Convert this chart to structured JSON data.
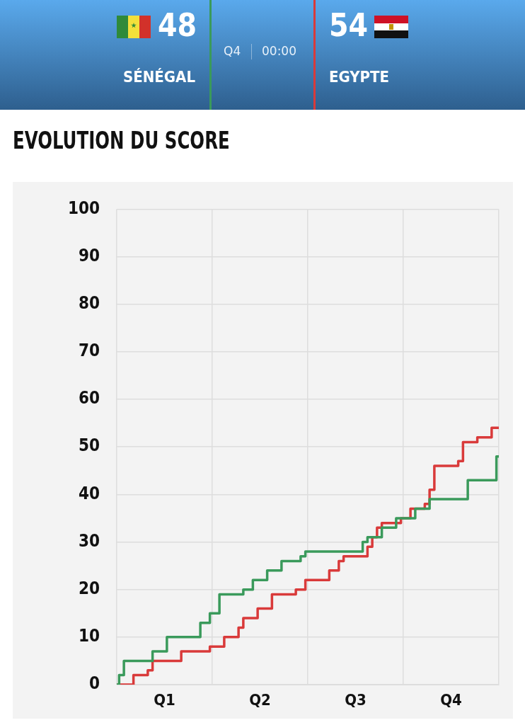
{
  "chart_data": {
    "type": "step",
    "title": "EVOLUTION DU SCORE",
    "annotations": [
      "48",
      "SÉNÉGAL",
      "Q4",
      "00:00",
      "54",
      "EGYPTE"
    ],
    "categories": [
      null,
      null,
      null,
      null,
      null,
      null,
      null,
      null,
      null,
      null,
      "Q1",
      null,
      null,
      null,
      null,
      null,
      null,
      null,
      null,
      null,
      null,
      null,
      null,
      null,
      null,
      null,
      null,
      null,
      null,
      null,
      "Q2",
      null,
      null,
      null,
      null,
      null,
      null,
      null,
      null,
      null,
      null,
      null,
      null,
      null,
      null,
      null,
      null,
      null,
      null,
      null,
      "Q3",
      null,
      null,
      null,
      null,
      null,
      null,
      null,
      null,
      null,
      null,
      null,
      null,
      null,
      null,
      null,
      null,
      null,
      null,
      null,
      "Q4",
      null,
      null,
      null,
      null,
      null,
      null,
      null,
      null,
      null,
      null
    ],
    "ylim": [
      0,
      100
    ],
    "yticks": [
      0,
      10,
      20,
      30,
      40,
      50,
      60,
      70,
      80,
      90,
      100
    ],
    "grid": true,
    "series": [
      {
        "color": "#3a9a5b",
        "values": [
          0,
          2,
          5,
          5,
          5,
          5,
          5,
          5,
          7,
          7,
          7,
          10,
          10,
          10,
          10,
          10,
          10,
          10,
          13,
          13,
          15,
          15,
          19,
          19,
          19,
          19,
          19,
          20,
          20,
          22,
          22,
          22,
          24,
          24,
          24,
          26,
          26,
          26,
          26,
          27,
          28,
          28,
          28,
          28,
          28,
          28,
          28,
          28,
          28,
          28,
          28,
          28,
          30,
          31,
          31,
          31,
          33,
          33,
          33,
          35,
          35,
          35,
          35,
          37,
          37,
          37,
          39,
          39,
          39,
          39,
          39,
          39,
          39,
          39,
          43,
          43,
          43,
          43,
          43,
          43,
          48
        ]
      },
      {
        "color": "#d93a3a",
        "values": [
          0,
          0,
          0,
          0,
          2,
          2,
          2,
          3,
          5,
          5,
          5,
          5,
          5,
          5,
          7,
          7,
          7,
          7,
          7,
          7,
          8,
          8,
          8,
          10,
          10,
          10,
          12,
          14,
          14,
          14,
          16,
          16,
          16,
          19,
          19,
          19,
          19,
          19,
          20,
          20,
          22,
          22,
          22,
          22,
          22,
          24,
          24,
          26,
          27,
          27,
          27,
          27,
          27,
          29,
          31,
          33,
          34,
          34,
          34,
          34,
          35,
          35,
          37,
          37,
          37,
          38,
          41,
          46,
          46,
          46,
          46,
          46,
          47,
          51,
          51,
          51,
          52,
          52,
          52,
          54,
          54
        ]
      }
    ]
  }
}
